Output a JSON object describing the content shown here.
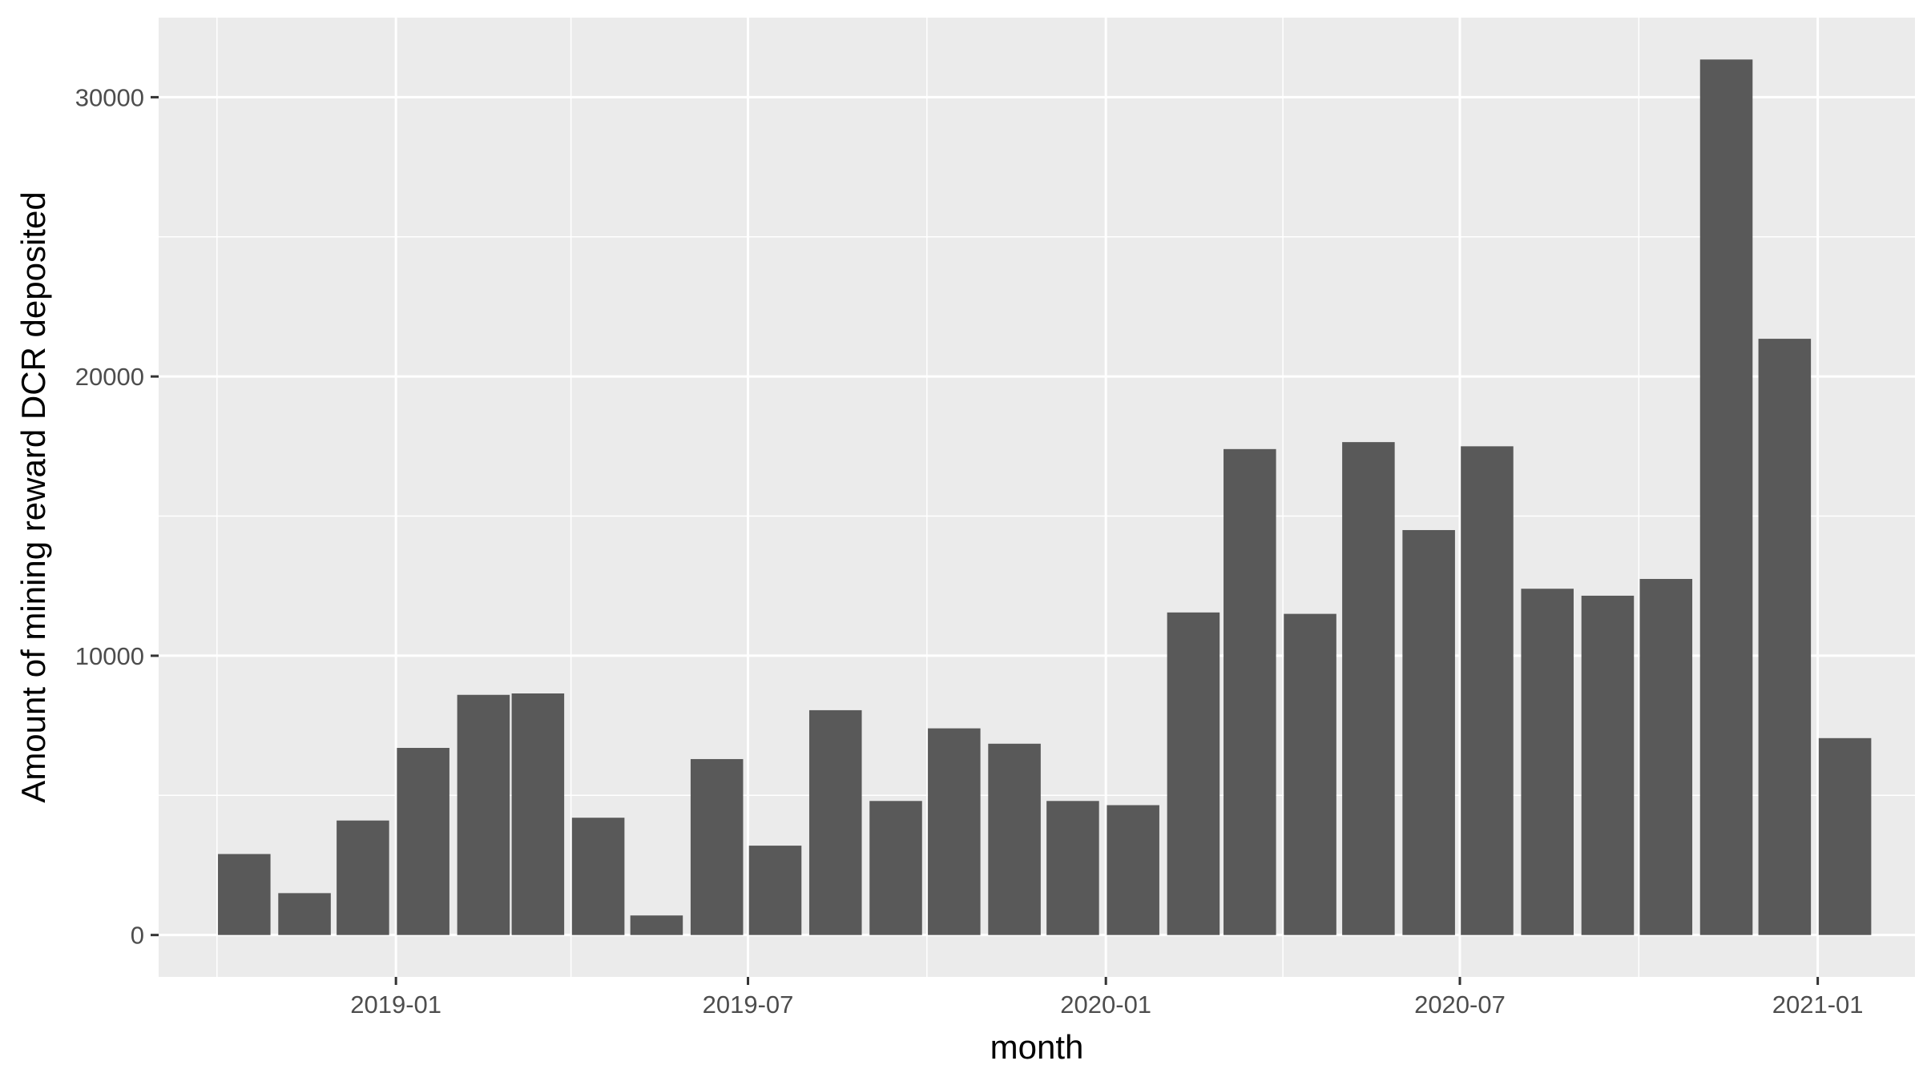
{
  "chart_data": {
    "type": "bar",
    "title": "",
    "xlabel": "month",
    "ylabel": "Amount of mining reward DCR deposited",
    "x": [
      "2018-10",
      "2018-11",
      "2018-12",
      "2019-01",
      "2019-02",
      "2019-03",
      "2019-04",
      "2019-05",
      "2019-06",
      "2019-07",
      "2019-08",
      "2019-09",
      "2019-10",
      "2019-11",
      "2019-12",
      "2020-01",
      "2020-02",
      "2020-03",
      "2020-04",
      "2020-05",
      "2020-06",
      "2020-07",
      "2020-08",
      "2020-09",
      "2020-10",
      "2020-11",
      "2020-12",
      "2021-01"
    ],
    "values": [
      2900,
      1500,
      4100,
      6700,
      8600,
      8650,
      4200,
      700,
      6300,
      3200,
      8050,
      4800,
      7400,
      6850,
      4800,
      4650,
      11550,
      17400,
      11500,
      17650,
      14500,
      17500,
      12400,
      12150,
      12750,
      31350,
      21350,
      7050
    ],
    "ylim": [
      -1500,
      32850
    ],
    "yticks": [
      0,
      10000,
      20000,
      30000
    ],
    "ytick_labels": [
      "0",
      "10000",
      "20000",
      "30000"
    ],
    "xticks": [
      "2019-01",
      "2019-07",
      "2020-01",
      "2020-07",
      "2021-01"
    ],
    "xtick_labels": [
      "2019-01",
      "2019-07",
      "2020-01",
      "2020-07",
      "2021-01"
    ],
    "xlim": [
      "2018-09-01",
      "2021-02-20"
    ],
    "grid": true,
    "colors": {
      "panel": "#ebebeb",
      "grid": "#ffffff",
      "bar": "#595959",
      "tick_text": "#4d4d4d",
      "axis_title": "#000000"
    }
  }
}
